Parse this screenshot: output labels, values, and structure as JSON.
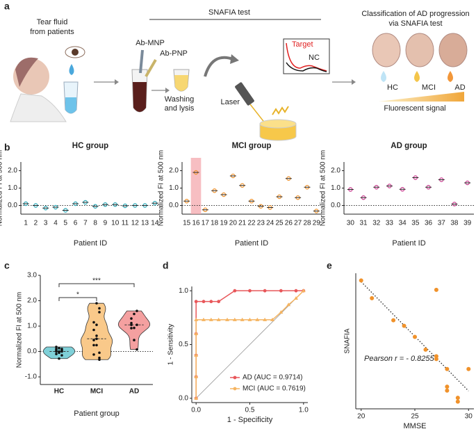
{
  "panel_labels": [
    "a",
    "b",
    "c",
    "d",
    "e"
  ],
  "diagram": {
    "tear": [
      "Tear fluid",
      "from patients"
    ],
    "test_title": "SNAFIA test",
    "ab_mnp": "Ab-MNP",
    "ab_pnp": "Ab-PNP",
    "washing": [
      "Washing",
      "and lysis"
    ],
    "laser": "Laser",
    "target": "Target",
    "nc": "NC",
    "classification": [
      "Classification of AD progression",
      "via SNAFIA test"
    ],
    "stages": [
      "HC",
      "MCI",
      "AD"
    ],
    "signal": "Fluorescent signal"
  },
  "chart_data": [
    {
      "type": "dot",
      "title": "HC group",
      "x_label": "Patient ID",
      "y_label": "Normalized FI at 500 nm",
      "categories": [
        "1",
        "2",
        "3",
        "4",
        "5",
        "6",
        "7",
        "8",
        "9",
        "10",
        "11",
        "12",
        "13",
        "14"
      ],
      "values": [
        0.1,
        0.0,
        -0.15,
        -0.1,
        -0.28,
        0.1,
        0.18,
        -0.05,
        0.05,
        0.05,
        -0.02,
        0.0,
        0.0,
        0.13
      ],
      "color": "#2aa9b8",
      "ylim": [
        -0.5,
        2.5
      ],
      "yticks": [
        {
          "value": 0,
          "label": "0.0"
        },
        {
          "value": 1,
          "label": "1.0"
        },
        {
          "value": 2,
          "label": "2.0"
        }
      ]
    },
    {
      "type": "dot",
      "title": "MCI group",
      "x_label": "Patient ID",
      "y_label": "Normalized FI at 500 nm",
      "categories": [
        "15",
        "16",
        "17",
        "18",
        "19",
        "20",
        "21",
        "22",
        "23",
        "24",
        "25",
        "26",
        "27",
        "28",
        "29"
      ],
      "values": [
        0.25,
        1.9,
        -0.25,
        0.85,
        0.62,
        1.7,
        1.15,
        0.25,
        -0.05,
        -0.12,
        0.5,
        1.55,
        0.45,
        1.05,
        -0.32
      ],
      "color": "#f0922b",
      "highlight": "16",
      "highlight_color": "#f4a3a8",
      "ylim": [
        -0.5,
        2.5
      ],
      "yticks": [
        {
          "value": 0,
          "label": "0.0"
        },
        {
          "value": 1,
          "label": "1.0"
        },
        {
          "value": 2,
          "label": "2.0"
        }
      ]
    },
    {
      "type": "dot",
      "title": "AD group",
      "x_label": "Patient ID",
      "y_label": "Normalized FI at 500 nm",
      "categories": [
        "30",
        "31",
        "32",
        "33",
        "34",
        "35",
        "36",
        "37",
        "38",
        "39"
      ],
      "values": [
        0.92,
        0.45,
        1.05,
        1.12,
        0.93,
        1.6,
        1.05,
        1.48,
        0.08,
        1.3
      ],
      "color": "#c8388d",
      "ylim": [
        -0.5,
        2.5
      ],
      "yticks": [
        {
          "value": 0,
          "label": "0.0"
        },
        {
          "value": 1,
          "label": "1.0"
        },
        {
          "value": 2,
          "label": "2.0"
        }
      ]
    },
    {
      "type": "violin",
      "x_label": "Patient group",
      "y_label": "Normalized FI at 500 nm",
      "categories": [
        "HC",
        "MCI",
        "AD"
      ],
      "colors": [
        "#7fd0d8",
        "#f9c98a",
        "#f4a0a0"
      ],
      "ylim": [
        -1.3,
        3.0
      ],
      "yticks": [
        {
          "value": -1,
          "label": "-1.0"
        },
        {
          "value": 0,
          "label": "0.0"
        },
        {
          "value": 1,
          "label": "1.0"
        },
        {
          "value": 2,
          "label": "2.0"
        },
        {
          "value": 3,
          "label": "3.0"
        }
      ],
      "significance": [
        {
          "pair": [
            "HC",
            "MCI"
          ],
          "label": "*"
        },
        {
          "pair": [
            "HC",
            "AD"
          ],
          "label": "***"
        }
      ]
    },
    {
      "type": "roc",
      "x_label": "1 - Specificity",
      "y_label": "1 - Sensitivity",
      "xlim": [
        -0.04,
        1.04
      ],
      "ylim": [
        -0.04,
        1.04
      ],
      "xticks": [
        {
          "value": 0,
          "label": "0.0"
        },
        {
          "value": 0.5,
          "label": "0.5"
        },
        {
          "value": 1,
          "label": "1.0"
        }
      ],
      "yticks": [
        {
          "value": 0,
          "label": "0.0"
        },
        {
          "value": 0.5,
          "label": "0.5"
        },
        {
          "value": 1,
          "label": "1.0"
        }
      ],
      "legend": "lower right",
      "series": [
        {
          "name": "AD (AUC = 0.9714)",
          "color": "#e8575a",
          "marker": "circle",
          "x": [
            0,
            0,
            0,
            0,
            0,
            0.07,
            0.14,
            0.21,
            0.36,
            0.5,
            0.64,
            0.79,
            0.93,
            1.0
          ],
          "values": [
            0,
            0.2,
            0.4,
            0.6,
            0.9,
            0.9,
            0.9,
            0.9,
            1,
            1,
            1,
            1,
            1,
            1
          ]
        },
        {
          "name": "MCI (AUC = 0.7619)",
          "color": "#f5b461",
          "marker": "triangle",
          "x": [
            0,
            0,
            0,
            0,
            0,
            0.07,
            0.14,
            0.21,
            0.29,
            0.36,
            0.43,
            0.5,
            0.57,
            0.64,
            0.71,
            0.79,
            0.86,
            0.93,
            1.0
          ],
          "values": [
            0,
            0.2,
            0.4,
            0.6,
            0.73,
            0.73,
            0.73,
            0.73,
            0.73,
            0.73,
            0.73,
            0.73,
            0.73,
            0.73,
            0.73,
            0.8,
            0.87,
            0.93,
            1.0
          ]
        }
      ]
    },
    {
      "type": "scatter",
      "x_label": "MMSE",
      "y_label": "SNAFIA",
      "x": [
        20,
        21,
        23,
        24,
        25,
        26,
        27,
        27,
        27,
        28,
        28,
        28,
        29,
        29,
        30
      ],
      "values": [
        1.87,
        1.55,
        1.15,
        1.05,
        0.85,
        0.62,
        1.7,
        0.5,
        0.45,
        0.27,
        -0.05,
        -0.12,
        -0.25,
        -0.32,
        0.27
      ],
      "color": "#f0922b",
      "xlim": [
        19.5,
        30.5
      ],
      "ylim": [
        -0.45,
        2.0
      ],
      "xticks": [
        20,
        25,
        30
      ],
      "annotation": "Pearson r = - 0.8255",
      "trendline": true
    }
  ]
}
